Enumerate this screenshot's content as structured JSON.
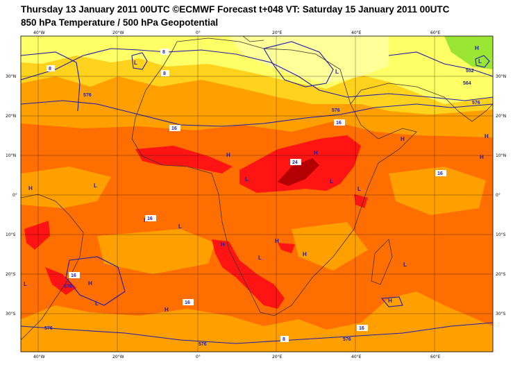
{
  "header": {
    "line1": "Thursday 13 January 2011 00UTC ©ECMWF Forecast t+048 VT: Saturday 15 January 2011 00UTC",
    "line2": "850 hPa Temperature / 500 hPa Geopotential"
  },
  "axes": {
    "top_lon": [
      "40°W",
      "20°W",
      "0°",
      "20°E",
      "40°E",
      "60°E"
    ],
    "bottom_lon": [
      "40°W",
      "20°W",
      "0°",
      "20°E",
      "40°E",
      "60°E"
    ],
    "left_lat": [
      "30°N",
      "20°N",
      "10°N",
      "0°",
      "10°S",
      "20°S",
      "30°S"
    ],
    "right_lat": [
      "30°N",
      "20°N",
      "10°N",
      "0°",
      "10°S",
      "20°S",
      "30°S"
    ]
  },
  "colors": {
    "background": "#ffffff",
    "temp_8_12": "#ffff66",
    "temp_12_16": "#ffd21e",
    "temp_16_20": "#ffa000",
    "temp_20_24": "#ff6e00",
    "temp_24_28": "#ff1414",
    "temp_28_plus": "#b40000",
    "cold": "#9be632",
    "contour": "#1c1caa",
    "coast": "#40302a"
  },
  "pressure_centers": [
    {
      "label": "L"
    },
    {
      "label": "L"
    },
    {
      "label": "H"
    },
    {
      "label": "L"
    },
    {
      "label": "H"
    },
    {
      "label": "H"
    },
    {
      "label": "H"
    },
    {
      "label": "L"
    },
    {
      "label": "L"
    },
    {
      "label": "H"
    },
    {
      "label": "H"
    },
    {
      "label": "H"
    },
    {
      "label": "L"
    },
    {
      "label": "L"
    },
    {
      "label": "H"
    },
    {
      "label": "L"
    },
    {
      "label": "H"
    },
    {
      "label": "L"
    },
    {
      "label": "H"
    },
    {
      "label": "L"
    },
    {
      "label": "H"
    },
    {
      "label": "H"
    },
    {
      "label": "L"
    },
    {
      "label": "H"
    },
    {
      "label": "L"
    },
    {
      "label": "H"
    }
  ],
  "contour_labels": [
    "8",
    "8",
    "8",
    "8",
    "16",
    "16",
    "16",
    "16",
    "16",
    "16",
    "16",
    "24",
    "576",
    "576",
    "576",
    "576",
    "576",
    "564",
    "552",
    "576",
    "576"
  ]
}
